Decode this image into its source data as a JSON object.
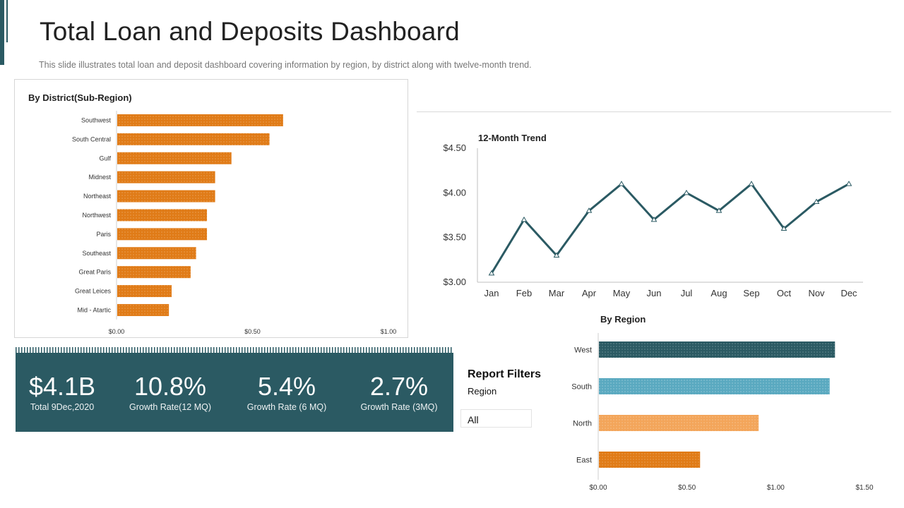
{
  "header": {
    "title": "Total Loan and Deposits Dashboard",
    "subtitle": "This slide illustrates total loan and deposit dashboard covering information by region, by district along with twelve-month  trend."
  },
  "colors": {
    "accent": "#2b5a63",
    "orange": "#e07b17",
    "light_orange": "#f3a55a",
    "light_blue": "#5aa9c0",
    "line": "#2b5a63"
  },
  "kpis": [
    {
      "value": "$4.1B",
      "label": "Total 9Dec,2020"
    },
    {
      "value": "10.8%",
      "label": "Growth Rate(12 MQ)"
    },
    {
      "value": "5.4%",
      "label": "Growth Rate (6 MQ)"
    },
    {
      "value": "2.7%",
      "label": "Growth Rate (3MQ)"
    }
  ],
  "filters": {
    "title": "Report Filters",
    "region_label": "Region",
    "selected": "All"
  },
  "chart_data": [
    {
      "type": "bar",
      "orientation": "horizontal",
      "title": "By District(Sub-Region)",
      "categories": [
        "Southwest",
        "South Central",
        "Gulf",
        "Midnest",
        "Northeast",
        "Northwest",
        "Paris",
        "Southeast",
        "Great Paris",
        "Great Leices",
        "Mid - Atartic"
      ],
      "values": [
        0.61,
        0.56,
        0.42,
        0.36,
        0.36,
        0.33,
        0.33,
        0.29,
        0.27,
        0.2,
        0.19
      ],
      "xlim": [
        0,
        1.0
      ],
      "xticks": [
        "$0.00",
        "$0.50",
        "$1.00"
      ],
      "color": "#e07b17"
    },
    {
      "type": "line",
      "title": "12-Month Trend",
      "categories": [
        "Jan",
        "Feb",
        "Mar",
        "Apr",
        "May",
        "Jun",
        "Jul",
        "Aug",
        "Sep",
        "Oct",
        "Nov",
        "Dec"
      ],
      "values": [
        3.1,
        3.7,
        3.3,
        3.8,
        4.1,
        3.7,
        4.0,
        3.8,
        4.1,
        3.6,
        3.9,
        4.1
      ],
      "ylim": [
        3.0,
        4.5
      ],
      "yticks": [
        "$4.50",
        "$4.00",
        "$3.50",
        "$3.00"
      ],
      "color": "#2b5a63"
    },
    {
      "type": "bar",
      "orientation": "horizontal",
      "title": "By Region",
      "categories": [
        "West",
        "South",
        "North",
        "East"
      ],
      "values": [
        1.33,
        1.3,
        0.9,
        0.57
      ],
      "colors": [
        "#2b5a63",
        "#5aa9c0",
        "#f3a55a",
        "#e07b17"
      ],
      "xlim": [
        0,
        1.5
      ],
      "xticks": [
        "$0.00",
        "$0.50",
        "$1.00",
        "$1.50"
      ]
    }
  ]
}
